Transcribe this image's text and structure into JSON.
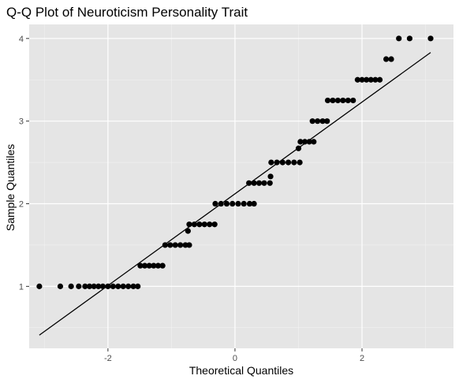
{
  "chart_data": {
    "type": "scatter",
    "title": "Q-Q Plot of Neuroticism Personality Trait",
    "xlabel": "Theoretical Quantiles",
    "ylabel": "Sample Quantiles",
    "xlim": [
      -3.24,
      3.44
    ],
    "ylim": [
      0.25,
      4.17
    ],
    "x_ticks": [
      -2,
      0,
      2
    ],
    "y_ticks": [
      1,
      2,
      3,
      4
    ],
    "x_tick_labels": [
      "-2",
      "0",
      "2"
    ],
    "y_tick_labels": [
      "1",
      "2",
      "3",
      "4"
    ],
    "grid": true,
    "legend": "none",
    "reference_line": {
      "x": [
        -3.08,
        3.08
      ],
      "y": [
        0.41,
        3.83
      ]
    },
    "points": [
      {
        "x": -3.08,
        "y": 1.0
      },
      {
        "x": -2.75,
        "y": 1.0
      },
      {
        "x": -2.58,
        "y": 1.0
      },
      {
        "x": -2.46,
        "y": 1.0
      },
      {
        "x": -2.36,
        "y": 1.0
      },
      {
        "x": -2.29,
        "y": 1.0
      },
      {
        "x": -2.22,
        "y": 1.0
      },
      {
        "x": -2.15,
        "y": 1.0
      },
      {
        "x": -2.08,
        "y": 1.0
      },
      {
        "x": -2.0,
        "y": 1.0
      },
      {
        "x": -1.92,
        "y": 1.0
      },
      {
        "x": -1.84,
        "y": 1.0
      },
      {
        "x": -1.76,
        "y": 1.0
      },
      {
        "x": -1.68,
        "y": 1.0
      },
      {
        "x": -1.6,
        "y": 1.0
      },
      {
        "x": -1.53,
        "y": 1.0
      },
      {
        "x": -1.49,
        "y": 1.25
      },
      {
        "x": -1.42,
        "y": 1.25
      },
      {
        "x": -1.35,
        "y": 1.25
      },
      {
        "x": -1.28,
        "y": 1.25
      },
      {
        "x": -1.21,
        "y": 1.25
      },
      {
        "x": -1.14,
        "y": 1.25
      },
      {
        "x": -1.1,
        "y": 1.5
      },
      {
        "x": -1.02,
        "y": 1.5
      },
      {
        "x": -0.94,
        "y": 1.5
      },
      {
        "x": -0.86,
        "y": 1.5
      },
      {
        "x": -0.78,
        "y": 1.5
      },
      {
        "x": -0.72,
        "y": 1.5
      },
      {
        "x": -0.74,
        "y": 1.67
      },
      {
        "x": -0.72,
        "y": 1.75
      },
      {
        "x": -0.64,
        "y": 1.75
      },
      {
        "x": -0.56,
        "y": 1.75
      },
      {
        "x": -0.48,
        "y": 1.75
      },
      {
        "x": -0.4,
        "y": 1.75
      },
      {
        "x": -0.32,
        "y": 1.75
      },
      {
        "x": -0.31,
        "y": 2.0
      },
      {
        "x": -0.22,
        "y": 2.0
      },
      {
        "x": -0.13,
        "y": 2.0
      },
      {
        "x": -0.04,
        "y": 2.0
      },
      {
        "x": 0.05,
        "y": 2.0
      },
      {
        "x": 0.14,
        "y": 2.0
      },
      {
        "x": 0.23,
        "y": 2.0
      },
      {
        "x": 0.3,
        "y": 2.0
      },
      {
        "x": 0.22,
        "y": 2.25
      },
      {
        "x": 0.3,
        "y": 2.25
      },
      {
        "x": 0.38,
        "y": 2.25
      },
      {
        "x": 0.46,
        "y": 2.25
      },
      {
        "x": 0.55,
        "y": 2.25
      },
      {
        "x": 0.56,
        "y": 2.33
      },
      {
        "x": 0.57,
        "y": 2.5
      },
      {
        "x": 0.66,
        "y": 2.5
      },
      {
        "x": 0.75,
        "y": 2.5
      },
      {
        "x": 0.84,
        "y": 2.5
      },
      {
        "x": 0.93,
        "y": 2.5
      },
      {
        "x": 1.02,
        "y": 2.5
      },
      {
        "x": 1.0,
        "y": 2.67
      },
      {
        "x": 1.03,
        "y": 2.75
      },
      {
        "x": 1.1,
        "y": 2.75
      },
      {
        "x": 1.17,
        "y": 2.75
      },
      {
        "x": 1.24,
        "y": 2.75
      },
      {
        "x": 1.22,
        "y": 3.0
      },
      {
        "x": 1.3,
        "y": 3.0
      },
      {
        "x": 1.38,
        "y": 3.0
      },
      {
        "x": 1.45,
        "y": 3.0
      },
      {
        "x": 1.46,
        "y": 3.25
      },
      {
        "x": 1.54,
        "y": 3.25
      },
      {
        "x": 1.62,
        "y": 3.25
      },
      {
        "x": 1.7,
        "y": 3.25
      },
      {
        "x": 1.78,
        "y": 3.25
      },
      {
        "x": 1.86,
        "y": 3.25
      },
      {
        "x": 1.93,
        "y": 3.5
      },
      {
        "x": 2.0,
        "y": 3.5
      },
      {
        "x": 2.07,
        "y": 3.5
      },
      {
        "x": 2.14,
        "y": 3.5
      },
      {
        "x": 2.21,
        "y": 3.5
      },
      {
        "x": 2.28,
        "y": 3.5
      },
      {
        "x": 2.38,
        "y": 3.75
      },
      {
        "x": 2.46,
        "y": 3.75
      },
      {
        "x": 2.58,
        "y": 4.0
      },
      {
        "x": 2.75,
        "y": 4.0
      },
      {
        "x": 3.08,
        "y": 4.0
      }
    ]
  }
}
